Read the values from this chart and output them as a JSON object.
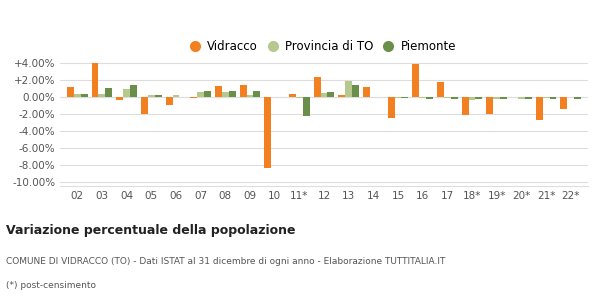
{
  "categories": [
    "02",
    "03",
    "04",
    "05",
    "06",
    "07",
    "08",
    "09",
    "10",
    "11*",
    "12",
    "13",
    "14",
    "15",
    "16",
    "17",
    "18*",
    "19*",
    "20*",
    "21*",
    "22*"
  ],
  "vidracco": [
    1.1,
    3.9,
    -0.4,
    -2.1,
    -1.0,
    -0.15,
    1.3,
    1.35,
    -8.4,
    0.3,
    2.3,
    0.2,
    1.1,
    -2.5,
    3.8,
    1.7,
    -2.2,
    -2.0,
    -0.1,
    -2.8,
    -1.5
  ],
  "provincia": [
    0.3,
    0.3,
    0.9,
    0.2,
    0.15,
    0.55,
    0.55,
    0.15,
    -0.1,
    -0.15,
    0.4,
    1.85,
    0.0,
    -0.2,
    -0.2,
    -0.2,
    -0.35,
    -0.3,
    -0.3,
    -0.2,
    -0.1
  ],
  "piemonte": [
    0.3,
    0.95,
    1.35,
    0.2,
    0.0,
    0.6,
    0.65,
    0.7,
    -0.05,
    -2.3,
    0.55,
    1.4,
    0.0,
    -0.15,
    -0.25,
    -0.25,
    -0.3,
    -0.3,
    -0.3,
    -0.3,
    -0.25
  ],
  "color_vidracco": "#f28020",
  "color_provincia": "#b5c98e",
  "color_piemonte": "#6a8f4a",
  "ylim_min": -10.5,
  "ylim_max": 5.0,
  "yticks": [
    -10.0,
    -8.0,
    -6.0,
    -4.0,
    -2.0,
    0.0,
    2.0,
    4.0
  ],
  "ytick_labels": [
    "-10.00%",
    "-8.00%",
    "-6.00%",
    "-4.00%",
    "-2.00%",
    "0.00%",
    "+2.00%",
    "+4.00%"
  ],
  "title": "Variazione percentuale della popolazione",
  "subtitle": "COMUNE DI VIDRACCO (TO) - Dati ISTAT al 31 dicembre di ogni anno - Elaborazione TUTTITALIA.IT",
  "footnote": "(*) post-censimento",
  "legend_labels": [
    "Vidracco",
    "Provincia di TO",
    "Piemonte"
  ],
  "bg_color": "#ffffff",
  "grid_color": "#dddddd"
}
